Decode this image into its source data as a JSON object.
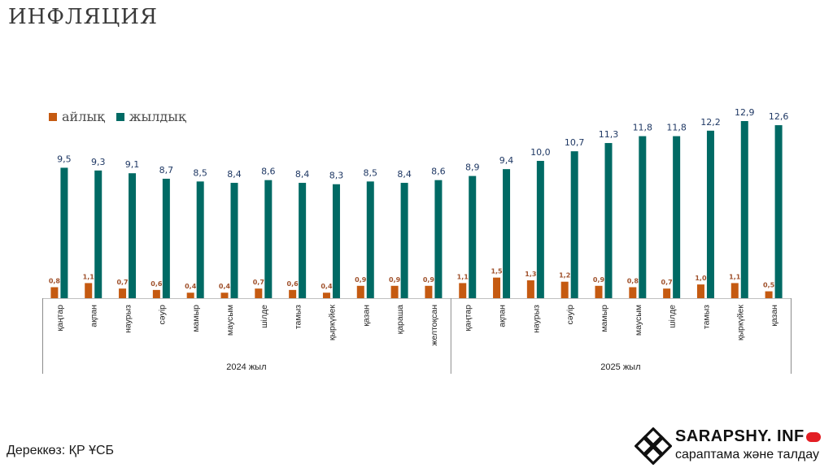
{
  "header": {
    "title": "ИНФЛЯЦИЯ"
  },
  "legend": [
    {
      "label": "айлық",
      "color": "#c55a11"
    },
    {
      "label": "жылдық",
      "color": "#006a64"
    }
  ],
  "footer": {
    "source": "Дереккөз: ҚР ҰСБ",
    "brand": "SARAPSHY. INF",
    "tagline": "сараптама және талдау"
  },
  "colors": {
    "monthly": "#c55a11",
    "annual": "#006a64",
    "monthly_label": "#a0522d",
    "annual_label": "#1f3864"
  },
  "chart_data": {
    "type": "bar",
    "title": "ИНФЛЯЦИЯ",
    "categories": [
      "қаңтар",
      "ақпан",
      "наурыз",
      "сәуір",
      "мамыр",
      "маусым",
      "шілде",
      "тамыз",
      "қыркүйек",
      "қазан",
      "қараша",
      "желтоқсан",
      "қаңтар",
      "ақпан",
      "наурыз",
      "сәуір",
      "мамыр",
      "маусым",
      "шілде",
      "тамыз",
      "қыркүйек",
      "қазан"
    ],
    "groups": [
      {
        "label": "2024 жыл",
        "count": 12
      },
      {
        "label": "2025 жыл",
        "count": 10
      }
    ],
    "series": [
      {
        "name": "айлық",
        "values": [
          0.8,
          1.1,
          0.7,
          0.6,
          0.4,
          0.4,
          0.7,
          0.6,
          0.4,
          0.9,
          0.9,
          0.9,
          1.1,
          1.5,
          1.3,
          1.2,
          0.9,
          0.8,
          0.7,
          1.0,
          1.1,
          0.5
        ]
      },
      {
        "name": "жылдық",
        "values": [
          9.5,
          9.3,
          9.1,
          8.7,
          8.5,
          8.4,
          8.6,
          8.4,
          8.3,
          8.5,
          8.4,
          8.6,
          8.9,
          9.4,
          10.0,
          10.7,
          11.3,
          11.8,
          11.8,
          12.2,
          12.9,
          12.6
        ]
      }
    ],
    "data_labels": [
      [
        "0,8",
        "1,1",
        "0,7",
        "0,6",
        "0,4",
        "0,4",
        "0,7",
        "0,6",
        "0,4",
        "0,9",
        "0,9",
        "0,9",
        "1,1",
        "1,5",
        "1,3",
        "1,2",
        "0,9",
        "0,8",
        "0,7",
        "1,0",
        "1,1",
        "0,5"
      ],
      [
        "9,5",
        "9,3",
        "9,1",
        "8,7",
        "8,5",
        "8,4",
        "8,6",
        "8,4",
        "8,3",
        "8,5",
        "8,4",
        "8,6",
        "8,9",
        "9,4",
        "10,0",
        "10,7",
        "11,3",
        "11,8",
        "11,8",
        "12,2",
        "12,9",
        "12,6"
      ]
    ],
    "ylim": [
      0,
      14
    ]
  }
}
